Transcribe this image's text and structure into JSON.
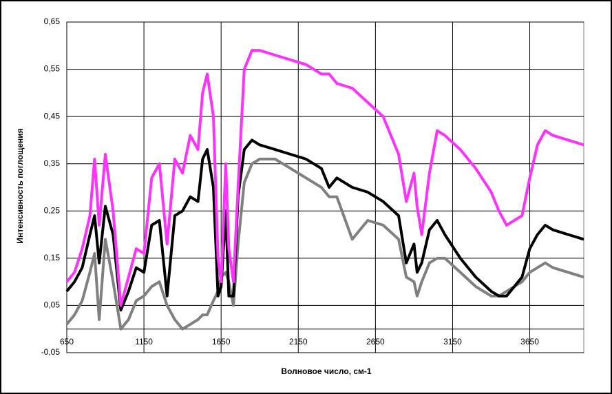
{
  "chart_data": {
    "type": "line",
    "ylabel": "Интенсивность  поглощения",
    "xlabel": "Волновое  число, см-1",
    "x": [
      650,
      700,
      750,
      800,
      830,
      860,
      900,
      950,
      1000,
      1050,
      1100,
      1150,
      1200,
      1250,
      1300,
      1350,
      1400,
      1450,
      1500,
      1530,
      1560,
      1600,
      1630,
      1650,
      1680,
      1700,
      1730,
      1760,
      1800,
      1850,
      1900,
      2000,
      2100,
      2200,
      2300,
      2350,
      2400,
      2500,
      2600,
      2700,
      2800,
      2850,
      2900,
      2920,
      2950,
      3000,
      3050,
      3100,
      3200,
      3300,
      3400,
      3450,
      3500,
      3600,
      3650,
      3700,
      3750,
      3800,
      3900,
      4000
    ],
    "series": [
      {
        "color": "#ff33ff",
        "values": [
          0.1,
          0.12,
          0.17,
          0.24,
          0.36,
          0.22,
          0.37,
          0.25,
          0.05,
          0.11,
          0.17,
          0.16,
          0.32,
          0.35,
          0.18,
          0.36,
          0.33,
          0.41,
          0.38,
          0.5,
          0.54,
          0.45,
          0.15,
          0.1,
          0.35,
          0.17,
          0.1,
          0.3,
          0.55,
          0.59,
          0.59,
          0.58,
          0.57,
          0.56,
          0.54,
          0.54,
          0.52,
          0.51,
          0.48,
          0.45,
          0.37,
          0.27,
          0.33,
          0.26,
          0.2,
          0.33,
          0.42,
          0.41,
          0.38,
          0.34,
          0.29,
          0.25,
          0.22,
          0.24,
          0.32,
          0.39,
          0.42,
          0.41,
          0.4,
          0.39
        ]
      },
      {
        "color": "#000000",
        "values": [
          0.08,
          0.1,
          0.13,
          0.2,
          0.24,
          0.14,
          0.26,
          0.2,
          0.04,
          0.08,
          0.13,
          0.12,
          0.22,
          0.23,
          0.07,
          0.24,
          0.25,
          0.28,
          0.27,
          0.36,
          0.38,
          0.3,
          0.07,
          0.09,
          0.25,
          0.07,
          0.07,
          0.28,
          0.38,
          0.4,
          0.39,
          0.38,
          0.37,
          0.36,
          0.34,
          0.3,
          0.32,
          0.3,
          0.29,
          0.27,
          0.24,
          0.14,
          0.18,
          0.12,
          0.14,
          0.21,
          0.23,
          0.2,
          0.15,
          0.11,
          0.08,
          0.07,
          0.07,
          0.11,
          0.17,
          0.2,
          0.22,
          0.21,
          0.2,
          0.19
        ]
      },
      {
        "color": "#808080",
        "values": [
          0.01,
          0.03,
          0.06,
          0.12,
          0.16,
          0.02,
          0.19,
          0.1,
          0.0,
          0.02,
          0.06,
          0.07,
          0.09,
          0.1,
          0.05,
          0.02,
          0.0,
          0.01,
          0.02,
          0.03,
          0.03,
          0.06,
          0.08,
          0.11,
          0.12,
          0.1,
          0.05,
          0.18,
          0.31,
          0.35,
          0.36,
          0.36,
          0.34,
          0.32,
          0.3,
          0.28,
          0.28,
          0.19,
          0.23,
          0.22,
          0.19,
          0.11,
          0.1,
          0.07,
          0.1,
          0.14,
          0.15,
          0.15,
          0.12,
          0.09,
          0.07,
          0.07,
          0.08,
          0.1,
          0.12,
          0.13,
          0.14,
          0.13,
          0.12,
          0.11
        ]
      }
    ],
    "xlim": [
      650,
      4000
    ],
    "ylim": [
      -0.05,
      0.65
    ],
    "xticks": [
      650,
      1150,
      1650,
      2150,
      2650,
      3150,
      3650
    ],
    "yticks": [
      {
        "value": -0.05,
        "label": "-0,05"
      },
      {
        "value": 0.05,
        "label": "0,05"
      },
      {
        "value": 0.15,
        "label": "0,15"
      },
      {
        "value": 0.25,
        "label": "0,25"
      },
      {
        "value": 0.35,
        "label": "0,35"
      },
      {
        "value": 0.45,
        "label": "0,45"
      },
      {
        "value": 0.55,
        "label": "0,55"
      },
      {
        "value": 0.65,
        "label": "0,65"
      }
    ],
    "grid": true
  }
}
